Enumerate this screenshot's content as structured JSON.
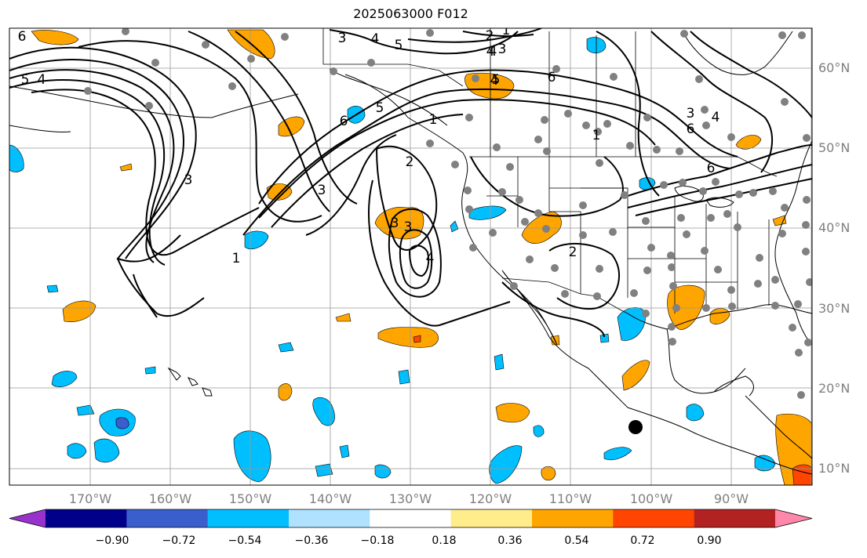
{
  "title": "2025063000 F012",
  "lat_labels": [
    "60°N",
    "50°N",
    "40°N",
    "30°N",
    "20°N",
    "10°N"
  ],
  "lon_labels": [
    "170°W",
    "160°W",
    "150°W",
    "140°W",
    "130°W",
    "120°W",
    "110°W",
    "100°W",
    "90°W"
  ],
  "colorbar": {
    "colors": [
      "#9932cc",
      "#00008b",
      "#3a5fcd",
      "#00bfff",
      "#b0e2ff",
      "#ffffff",
      "#ffec8b",
      "#ffa500",
      "#ff4500",
      "#b22222",
      "#ff88aa"
    ],
    "tick_labels": [
      "−0.90",
      "−0.72",
      "−0.54",
      "−0.36",
      "−0.18",
      "0.18",
      "0.36",
      "0.54",
      "0.72",
      "0.90"
    ]
  },
  "contour_labels": [
    "6",
    "5",
    "4",
    "3",
    "4",
    "5",
    "2",
    "1",
    "4",
    "3",
    "6",
    "5",
    "6",
    "4",
    "1",
    "3",
    "3",
    "2",
    "3",
    "4",
    "1",
    "2",
    "1",
    "3",
    "6",
    "4",
    "3",
    "6",
    "5",
    "4"
  ],
  "colors": {
    "positive": "#ffa500",
    "negative": "#00bfff",
    "strong_negative": "#3a5fcd",
    "strong_positive": "#ff4500",
    "station_dot": "#808080",
    "grid": "#999999",
    "label_gray": "#7f7f7f"
  }
}
